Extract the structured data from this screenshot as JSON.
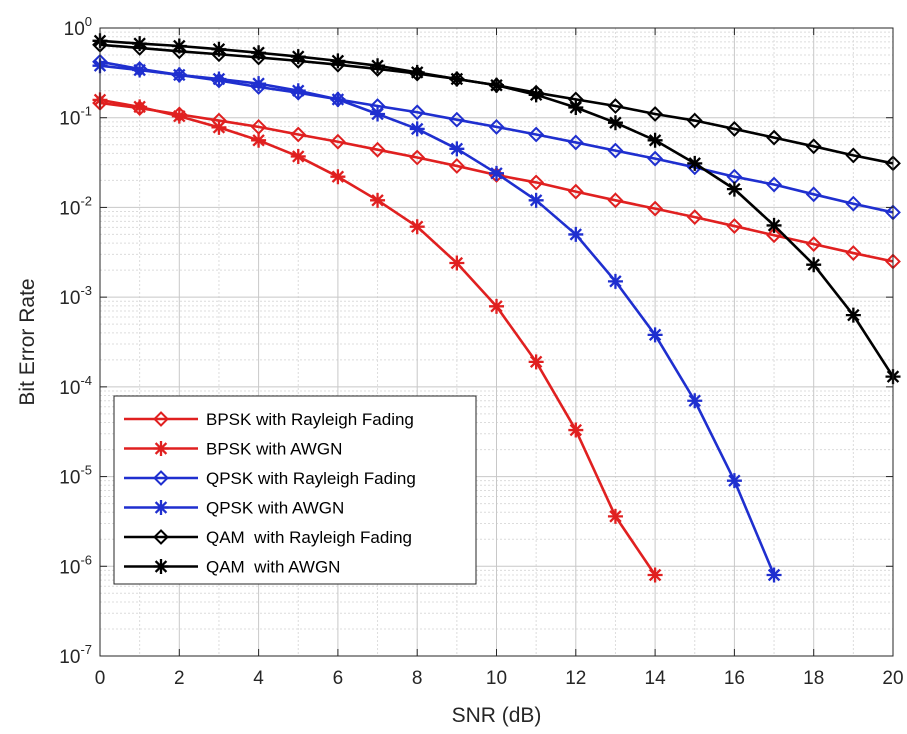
{
  "chart_data": {
    "type": "line",
    "title": "",
    "xlabel": "SNR (dB)",
    "ylabel": "Bit Error Rate",
    "x_scale": "linear",
    "y_scale": "log",
    "xlim": [
      0,
      20
    ],
    "ylim": [
      1e-07,
      1
    ],
    "x_ticks": [
      0,
      2,
      4,
      6,
      8,
      10,
      12,
      14,
      16,
      18,
      20
    ],
    "y_tick_labels": [
      {
        "base": "10",
        "exp": "0"
      },
      {
        "base": "10",
        "exp": "-1"
      },
      {
        "base": "10",
        "exp": "-2"
      },
      {
        "base": "10",
        "exp": "-3"
      },
      {
        "base": "10",
        "exp": "-4"
      },
      {
        "base": "10",
        "exp": "-5"
      },
      {
        "base": "10",
        "exp": "-6"
      },
      {
        "base": "10",
        "exp": "-7"
      }
    ],
    "grid": true,
    "minor_grid": true,
    "legend_position": "bottom-left",
    "series": [
      {
        "name": "BPSK with Rayleigh Fading",
        "color": "#e02020",
        "marker": "diamond",
        "x": [
          0,
          1,
          2,
          3,
          4,
          5,
          6,
          7,
          8,
          9,
          10,
          11,
          12,
          13,
          14,
          15,
          16,
          17,
          18,
          19,
          20
        ],
        "y": [
          0.146,
          0.128,
          0.109,
          0.093,
          0.079,
          0.065,
          0.054,
          0.044,
          0.036,
          0.029,
          0.023,
          0.019,
          0.015,
          0.012,
          0.0097,
          0.0078,
          0.0062,
          0.0049,
          0.0039,
          0.0031,
          0.0025
        ]
      },
      {
        "name": "BPSK with AWGN",
        "color": "#e02020",
        "marker": "asterisk",
        "x": [
          0,
          1,
          2,
          3,
          4,
          5,
          6,
          7,
          8,
          9,
          10,
          11,
          12,
          13,
          14
        ],
        "y": [
          0.158,
          0.132,
          0.104,
          0.078,
          0.056,
          0.037,
          0.022,
          0.012,
          0.0061,
          0.0024,
          0.00079,
          0.00019,
          3.3e-05,
          3.6e-06,
          8e-07
        ]
      },
      {
        "name": "QPSK with Rayleigh Fading",
        "color": "#1f2fcf",
        "marker": "diamond",
        "x": [
          0,
          1,
          2,
          3,
          4,
          5,
          6,
          7,
          8,
          9,
          10,
          11,
          12,
          13,
          14,
          15,
          16,
          17,
          18,
          19,
          20
        ],
        "y": [
          0.42,
          0.35,
          0.3,
          0.26,
          0.22,
          0.19,
          0.16,
          0.135,
          0.115,
          0.095,
          0.079,
          0.065,
          0.053,
          0.043,
          0.035,
          0.028,
          0.022,
          0.018,
          0.014,
          0.011,
          0.0088
        ]
      },
      {
        "name": "QPSK with AWGN",
        "color": "#1f2fcf",
        "marker": "asterisk",
        "x": [
          0,
          1,
          2,
          3,
          4,
          5,
          6,
          7,
          8,
          9,
          10,
          11,
          12,
          13,
          14,
          15,
          16,
          17
        ],
        "y": [
          0.38,
          0.34,
          0.3,
          0.27,
          0.24,
          0.2,
          0.16,
          0.11,
          0.075,
          0.045,
          0.024,
          0.012,
          0.005,
          0.0015,
          0.00038,
          7e-05,
          9e-06,
          8e-07
        ]
      },
      {
        "name": "QAM  with Rayleigh Fading",
        "color": "#000000",
        "marker": "diamond",
        "x": [
          0,
          1,
          2,
          3,
          4,
          5,
          6,
          7,
          8,
          9,
          10,
          11,
          12,
          13,
          14,
          15,
          16,
          17,
          18,
          19,
          20
        ],
        "y": [
          0.65,
          0.6,
          0.55,
          0.51,
          0.47,
          0.43,
          0.39,
          0.35,
          0.31,
          0.27,
          0.23,
          0.19,
          0.16,
          0.135,
          0.11,
          0.093,
          0.075,
          0.06,
          0.048,
          0.038,
          0.031
        ]
      },
      {
        "name": "QAM  with AWGN",
        "color": "#000000",
        "marker": "asterisk",
        "x": [
          0,
          1,
          2,
          3,
          4,
          5,
          6,
          7,
          8,
          9,
          10,
          11,
          12,
          13,
          14,
          15,
          16,
          17,
          18,
          19,
          20
        ],
        "y": [
          0.72,
          0.67,
          0.63,
          0.58,
          0.53,
          0.48,
          0.43,
          0.38,
          0.32,
          0.27,
          0.23,
          0.18,
          0.13,
          0.088,
          0.056,
          0.031,
          0.016,
          0.0063,
          0.0023,
          0.00063,
          0.00013
        ]
      }
    ]
  }
}
